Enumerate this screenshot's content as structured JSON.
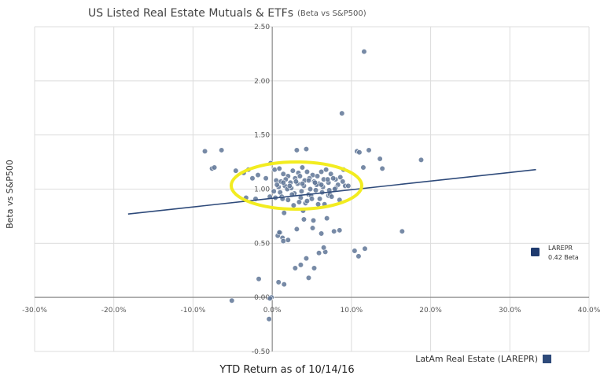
{
  "chart_data": {
    "type": "scatter",
    "title": "US Listed Real Estate Mutuals & ETFs",
    "subtitle": "(Beta vs S&P500)",
    "xlabel": "YTD Return as of 10/14/16",
    "ylabel": "Beta vs S&P500",
    "xlim": [
      -30,
      40
    ],
    "ylim": [
      -0.5,
      2.5
    ],
    "x_ticks": [
      -30,
      -20,
      -10,
      0,
      10,
      20,
      30,
      40
    ],
    "x_tick_labels": [
      "-30.0%",
      "-20.0%",
      "-10.0%",
      "0.0%",
      "10.0%",
      "20.0%",
      "30.0%",
      "40.0%"
    ],
    "y_ticks": [
      -0.5,
      0,
      0.5,
      1,
      1.5,
      2,
      2.5
    ],
    "y_tick_labels": [
      "-0.50",
      "0.00",
      "0.50",
      "1.00",
      "1.50",
      "2.00",
      "2.50"
    ],
    "grid": true,
    "colors": {
      "points": "#5f7597",
      "trendline": "#2e4a7a",
      "highlight_ellipse": "#f2ec20",
      "highlight_marker": "#1f3a6e",
      "grid": "#dcdcdc"
    },
    "trendline": {
      "x": [
        -18.2,
        33.3
      ],
      "y": [
        0.77,
        1.18
      ]
    },
    "highlight": {
      "name": "LAREPR",
      "note": "0.42 Beta",
      "legend_label": "LatAm Real Estate (LAREPR)"
    },
    "series": [
      {
        "name": "US Listed Real Estate Mutuals & ETFs",
        "x": [
          11.6,
          8.8,
          -8.5,
          -6.4,
          10.7,
          11.0,
          12.2,
          13.6,
          18.8,
          -7.6,
          -7.3,
          -4.6,
          -3.6,
          -3.0,
          -2.5,
          -1.8,
          -0.8,
          -0.2,
          13.9,
          11.5,
          9.0,
          3.1,
          4.3,
          0.3,
          0.9,
          1.4,
          2.0,
          2.6,
          3.3,
          3.8,
          4.4,
          5.1,
          5.7,
          6.2,
          6.8,
          7.4,
          8.0,
          8.6,
          9.2,
          0.5,
          1.1,
          1.7,
          2.3,
          2.9,
          3.5,
          4.1,
          4.7,
          5.3,
          5.9,
          6.5,
          7.1,
          7.7,
          8.3,
          8.9,
          0.8,
          1.6,
          2.4,
          3.2,
          4.0,
          4.8,
          5.6,
          6.4,
          7.2,
          8.0,
          0.2,
          1.0,
          1.9,
          2.8,
          3.7,
          4.6,
          5.5,
          6.3,
          7.1,
          7.9,
          0.6,
          1.4,
          2.2,
          3.0,
          3.8,
          4.6,
          5.4,
          6.2,
          7.0,
          1.2,
          2.5,
          3.6,
          4.9,
          6.0,
          7.3,
          8.5,
          9.6,
          2.0,
          3.4,
          4.2,
          5.0,
          6.6,
          0.4,
          1.3,
          2.7,
          4.4,
          5.8,
          7.5,
          -0.3,
          -2.1,
          -3.3,
          1.5,
          3.9,
          5.2,
          6.9,
          4.0,
          3.1,
          5.1,
          6.2,
          0.7,
          1.0,
          2.0,
          1.3,
          11.7,
          10.4,
          10.9,
          16.4,
          8.5,
          7.8,
          6.7,
          5.9,
          4.3,
          3.6,
          2.9,
          0.9,
          1.4,
          6.5,
          4.6,
          5.3,
          -1.7,
          0.8,
          1.5,
          -5.1,
          -0.1,
          -0.3,
          -0.4
        ],
        "y": [
          2.27,
          1.7,
          1.35,
          1.36,
          1.35,
          1.34,
          1.36,
          1.28,
          1.27,
          1.19,
          1.2,
          1.17,
          1.15,
          1.18,
          1.1,
          1.13,
          1.1,
          1.24,
          1.19,
          1.2,
          1.18,
          1.36,
          1.37,
          1.18,
          1.19,
          1.14,
          1.12,
          1.17,
          1.15,
          1.2,
          1.16,
          1.13,
          1.12,
          1.16,
          1.18,
          1.14,
          1.09,
          1.11,
          1.03,
          1.08,
          1.07,
          1.09,
          1.06,
          1.1,
          1.12,
          1.08,
          1.1,
          1.07,
          1.05,
          1.09,
          1.06,
          1.1,
          1.04,
          1.07,
          1.02,
          1.03,
          1.01,
          1.05,
          1.03,
          1.0,
          1.04,
          1.02,
          0.99,
          1.01,
          0.98,
          0.97,
          1.0,
          0.96,
          0.98,
          0.95,
          0.99,
          0.97,
          0.94,
          1.0,
          1.04,
          1.06,
          1.03,
          1.07,
          1.05,
          1.08,
          1.06,
          1.04,
          1.09,
          0.93,
          0.95,
          0.92,
          0.94,
          0.91,
          0.95,
          0.9,
          1.03,
          0.9,
          0.88,
          0.87,
          0.91,
          0.86,
          0.92,
          0.91,
          0.85,
          0.89,
          0.86,
          0.93,
          0.93,
          0.91,
          0.92,
          0.78,
          0.8,
          0.71,
          0.73,
          0.72,
          0.63,
          0.64,
          0.59,
          0.57,
          0.6,
          0.53,
          0.55,
          0.45,
          0.43,
          0.38,
          0.61,
          0.62,
          0.61,
          0.42,
          0.41,
          0.36,
          0.3,
          0.27,
          0.6,
          0.52,
          0.46,
          0.18,
          0.27,
          0.17,
          0.14,
          0.12,
          -0.03,
          0.0,
          -0.01,
          -0.2
        ]
      }
    ]
  }
}
